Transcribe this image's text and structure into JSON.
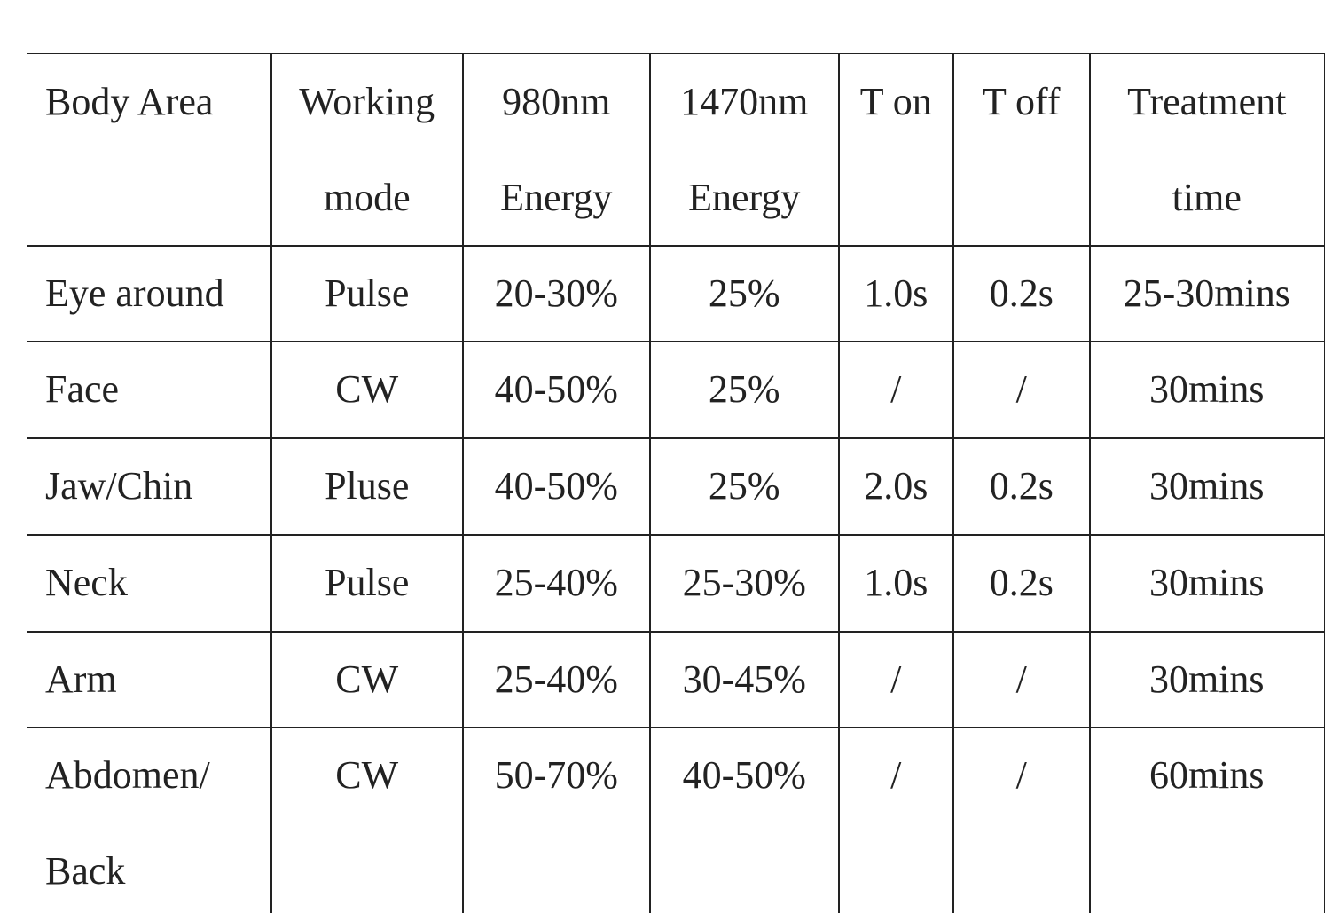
{
  "table": {
    "header": [
      "Body Area",
      "Working mode",
      "980nm Energy",
      "1470nm Energy",
      "T on",
      "T off",
      "Treatment time"
    ],
    "rows": [
      [
        "Eye around",
        "Pulse",
        "20-30%",
        "25%",
        "1.0s",
        "0.2s",
        "25-30mins"
      ],
      [
        "Face",
        "CW",
        "40-50%",
        "25%",
        "/",
        "/",
        "30mins"
      ],
      [
        "Jaw/Chin",
        "Pluse",
        "40-50%",
        "25%",
        "2.0s",
        "0.2s",
        "30mins"
      ],
      [
        "Neck",
        "Pulse",
        "25-40%",
        "25-30%",
        "1.0s",
        "0.2s",
        "30mins"
      ],
      [
        "Arm",
        "CW",
        "25-40%",
        "30-45%",
        "/",
        "/",
        "30mins"
      ],
      [
        "Abdomen/ Back",
        "CW",
        "50-70%",
        "40-50%",
        "/",
        "/",
        "60mins"
      ]
    ]
  }
}
